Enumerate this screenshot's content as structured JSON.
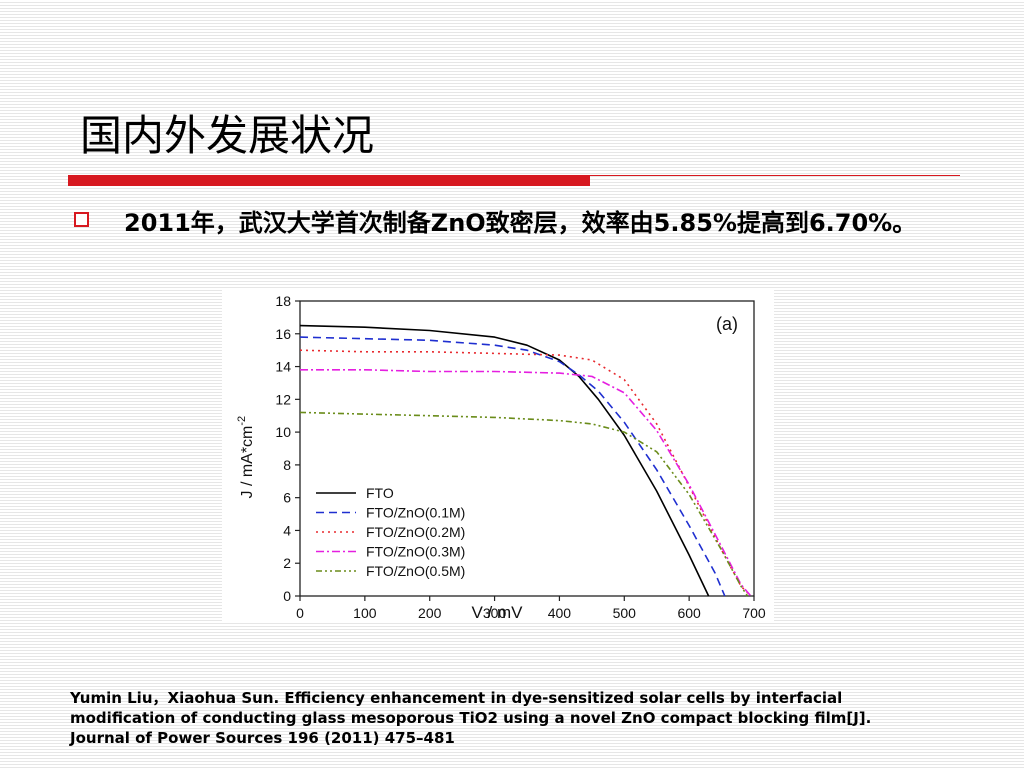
{
  "slide": {
    "title": "国内外发展状况",
    "bullet_text": "2011年，武汉大学首次制备ZnO致密层，效率由5.85%提高到6.70%。",
    "citation_lines": [
      "Yumin Liu，Xiaohua Sun. Efficiency enhancement in dye-sensitized solar cells by interfacial",
      "modification of conducting glass mesoporous TiO2 using a novel ZnO compact blocking film[J].",
      "Journal of Power Sources 196 (2011) 475–481"
    ],
    "colors": {
      "accent": "#d71920"
    }
  },
  "chart_data": {
    "type": "line",
    "panel_label": "(a)",
    "xlabel": "V / mV",
    "ylabel": "J / mA*cm",
    "ylabel_sup": "-2",
    "xlim": [
      0,
      700
    ],
    "ylim": [
      0,
      18
    ],
    "xticks": [
      0,
      100,
      200,
      300,
      400,
      500,
      600,
      700
    ],
    "yticks": [
      0,
      2,
      4,
      6,
      8,
      10,
      12,
      14,
      16,
      18
    ],
    "legend_position": "bottom-left",
    "series": [
      {
        "name": "FTO",
        "color": "#000000",
        "dash": "",
        "width": 1.6,
        "x": [
          0,
          100,
          200,
          300,
          350,
          400,
          430,
          460,
          500,
          550,
          600,
          630
        ],
        "y": [
          16.5,
          16.4,
          16.2,
          15.8,
          15.3,
          14.4,
          13.4,
          12.0,
          9.8,
          6.4,
          2.5,
          0
        ]
      },
      {
        "name": "FTO/ZnO(0.1M)",
        "color": "#1f2fd0",
        "dash": "8,5",
        "width": 1.6,
        "x": [
          0,
          100,
          200,
          300,
          350,
          400,
          430,
          460,
          500,
          550,
          600,
          640,
          655
        ],
        "y": [
          15.8,
          15.7,
          15.6,
          15.3,
          15.0,
          14.3,
          13.5,
          12.5,
          10.6,
          7.7,
          4.3,
          1.4,
          0
        ]
      },
      {
        "name": "FTO/ZnO(0.2M)",
        "color": "#e8292e",
        "dash": "2,4",
        "width": 1.6,
        "x": [
          0,
          100,
          200,
          300,
          400,
          450,
          500,
          550,
          600,
          650,
          680,
          695
        ],
        "y": [
          15.0,
          14.9,
          14.9,
          14.8,
          14.7,
          14.4,
          13.2,
          10.5,
          6.7,
          2.8,
          0.6,
          0
        ]
      },
      {
        "name": "FTO/ZnO(0.3M)",
        "color": "#e51fe0",
        "dash": "8,3,2,3",
        "width": 1.6,
        "x": [
          0,
          100,
          200,
          300,
          400,
          450,
          500,
          550,
          600,
          650,
          680,
          695
        ],
        "y": [
          13.8,
          13.8,
          13.7,
          13.7,
          13.6,
          13.4,
          12.4,
          10.1,
          6.8,
          3.0,
          0.7,
          0
        ]
      },
      {
        "name": "FTO/ZnO(0.5M)",
        "color": "#6a8c1a",
        "dash": "6,3,2,3,2,3",
        "width": 1.6,
        "x": [
          0,
          100,
          200,
          300,
          400,
          450,
          500,
          550,
          600,
          650,
          680,
          690
        ],
        "y": [
          11.2,
          11.1,
          11.0,
          10.9,
          10.7,
          10.5,
          10.0,
          8.8,
          6.2,
          2.8,
          0.6,
          0
        ]
      }
    ]
  }
}
